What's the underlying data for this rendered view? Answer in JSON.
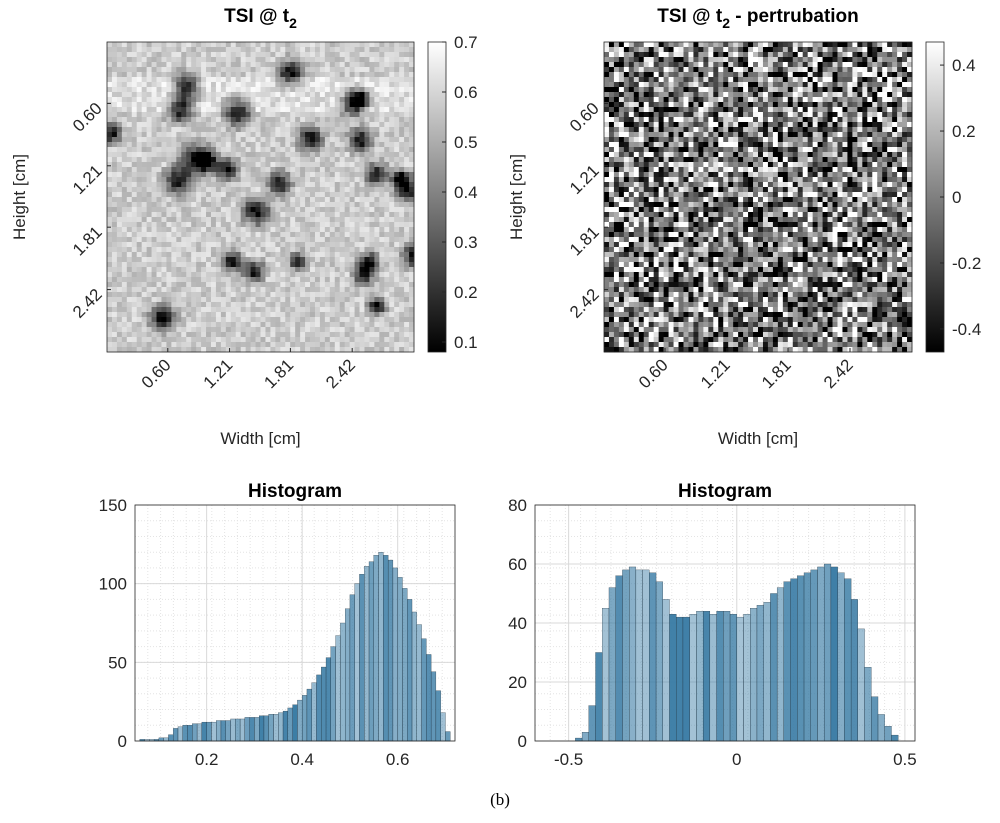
{
  "chart_data": [
    {
      "type": "heatmap",
      "title": {
        "text": "TSI @ t",
        "subscript": "2"
      },
      "xlabel": "Width [cm]",
      "ylabel": "Height [cm]",
      "xlim": [
        0,
        3.03
      ],
      "ylim": [
        0,
        3.03
      ],
      "xticks": [
        {
          "value": 0.6,
          "label": "0.60"
        },
        1.21,
        1.81,
        2.42
      ],
      "yticks": [
        {
          "value": 0.6,
          "label": "0.60"
        },
        1.21,
        1.81,
        2.42
      ],
      "colorbar": {
        "lim": [
          0.08,
          0.7
        ],
        "ticks": [
          0.1,
          0.2,
          0.3,
          0.4,
          0.5,
          0.6,
          0.7
        ]
      },
      "colormap": "gray"
    },
    {
      "type": "heatmap",
      "title": {
        "text": "TSI @ t",
        "subscript": "2",
        "suffix": " - pertrubation"
      },
      "xlabel": "Width [cm]",
      "ylabel": "Height [cm]",
      "xlim": [
        0,
        3.03
      ],
      "ylim": [
        0,
        3.03
      ],
      "xticks": [
        {
          "value": 0.6,
          "label": "0.60"
        },
        1.21,
        1.81,
        2.42
      ],
      "yticks": [
        {
          "value": 0.6,
          "label": "0.60"
        },
        1.21,
        1.81,
        2.42
      ],
      "colorbar": {
        "lim": [
          -0.47,
          0.47
        ],
        "ticks": [
          -0.4,
          -0.2,
          0,
          0.2,
          0.4
        ]
      },
      "colormap": "gray"
    },
    {
      "type": "histogram",
      "title": "Histogram",
      "color": "#3a7ca5",
      "grid": true,
      "xlim": [
        0.05,
        0.72
      ],
      "ylim": [
        0,
        150
      ],
      "xticks": [
        0.2,
        0.4,
        0.6
      ],
      "yticks": [
        0,
        50,
        100,
        150
      ],
      "bins": [
        0.06,
        0.07,
        0.08,
        0.09,
        0.1,
        0.11,
        0.12,
        0.13,
        0.14,
        0.15,
        0.16,
        0.17,
        0.18,
        0.19,
        0.2,
        0.21,
        0.22,
        0.23,
        0.24,
        0.25,
        0.26,
        0.27,
        0.28,
        0.29,
        0.3,
        0.31,
        0.32,
        0.33,
        0.34,
        0.35,
        0.36,
        0.37,
        0.38,
        0.39,
        0.4,
        0.41,
        0.42,
        0.43,
        0.44,
        0.45,
        0.46,
        0.47,
        0.48,
        0.49,
        0.5,
        0.51,
        0.52,
        0.53,
        0.54,
        0.55,
        0.56,
        0.57,
        0.58,
        0.59,
        0.6,
        0.61,
        0.62,
        0.63,
        0.64,
        0.65,
        0.66,
        0.67,
        0.68,
        0.69,
        0.7,
        0.71
      ],
      "values": [
        1,
        1,
        1,
        1,
        2,
        2,
        4,
        8,
        9,
        10,
        10,
        11,
        11,
        12,
        12,
        12,
        13,
        13,
        13,
        14,
        14,
        14,
        15,
        15,
        15,
        16,
        16,
        17,
        17,
        18,
        19,
        21,
        23,
        26,
        29,
        33,
        37,
        42,
        47,
        53,
        60,
        67,
        75,
        84,
        93,
        100,
        106,
        111,
        114,
        118,
        120,
        118,
        115,
        110,
        104,
        97,
        90,
        82,
        74,
        65,
        55,
        44,
        32,
        18,
        6
      ]
    },
    {
      "type": "histogram",
      "title": "Histogram",
      "color": "#3a7ca5",
      "grid": true,
      "xlim": [
        -0.6,
        0.53
      ],
      "ylim": [
        0,
        80
      ],
      "xticks": [
        -0.5,
        0,
        0.5
      ],
      "yticks": [
        0,
        20,
        40,
        60,
        80
      ],
      "bins": [
        -0.48,
        -0.46,
        -0.44,
        -0.42,
        -0.4,
        -0.38,
        -0.36,
        -0.34,
        -0.32,
        -0.3,
        -0.28,
        -0.26,
        -0.24,
        -0.22,
        -0.2,
        -0.18,
        -0.16,
        -0.14,
        -0.12,
        -0.1,
        -0.08,
        -0.06,
        -0.04,
        -0.02,
        0,
        0.02,
        0.04,
        0.06,
        0.08,
        0.1,
        0.12,
        0.14,
        0.16,
        0.18,
        0.2,
        0.22,
        0.24,
        0.26,
        0.28,
        0.3,
        0.32,
        0.34,
        0.36,
        0.38,
        0.4,
        0.42,
        0.44,
        0.46,
        0.48
      ],
      "values": [
        1,
        3,
        12,
        30,
        45,
        52,
        56,
        58,
        59,
        58,
        58,
        57,
        54,
        48,
        43,
        42,
        42,
        43,
        44,
        44,
        43,
        44,
        44,
        43,
        42,
        43,
        45,
        46,
        47,
        50,
        52,
        54,
        55,
        56,
        57,
        58,
        59,
        60,
        59,
        57,
        55,
        48,
        38,
        25,
        15,
        9,
        5,
        2
      ]
    }
  ],
  "caption": "(b)"
}
